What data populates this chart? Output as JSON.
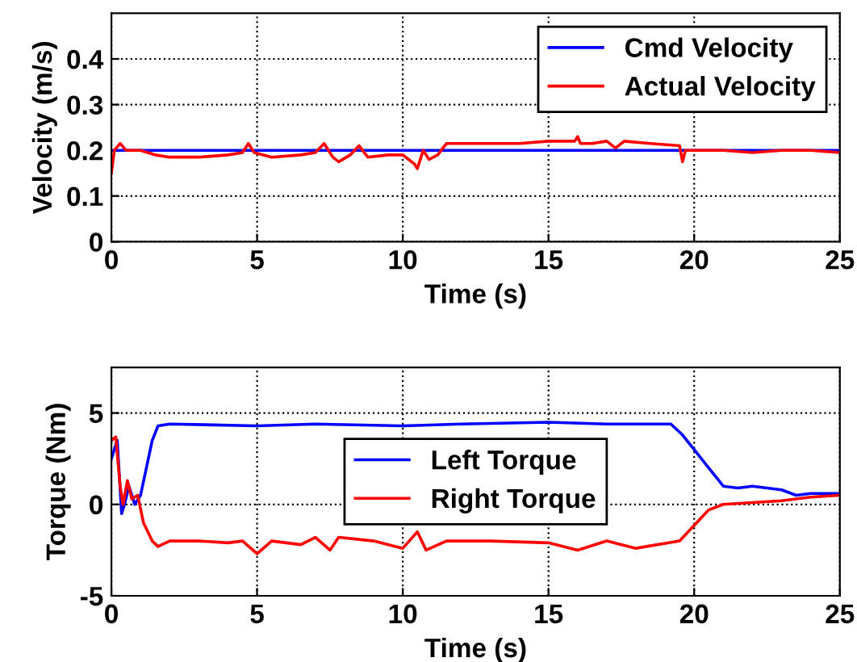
{
  "chart_data": [
    {
      "type": "line",
      "xlabel": "Time (s)",
      "ylabel": "Velocity (m/s)",
      "xlim": [
        0,
        25
      ],
      "xticks": [
        0,
        5,
        10,
        15,
        20,
        25
      ],
      "ylim": [
        0,
        0.5
      ],
      "yticks": [
        0,
        0.1,
        0.2,
        0.3,
        0.4
      ],
      "grid": true,
      "legend": "top right",
      "line_style": "solid",
      "series": [
        {
          "name": "Cmd Velocity",
          "color": "#0000ff",
          "x": [
            0,
            25
          ],
          "values": [
            0.2,
            0.2
          ]
        },
        {
          "name": "Actual Velocity",
          "color": "#ff0000",
          "x": [
            0,
            0.1,
            0.3,
            0.5,
            1,
            1.5,
            2,
            3,
            4,
            4.5,
            4.7,
            4.9,
            5.5,
            6.5,
            7,
            7.3,
            7.6,
            7.8,
            8.2,
            8.5,
            8.8,
            9.5,
            10,
            10.4,
            10.5,
            10.7,
            10.9,
            11.2,
            11.5,
            12,
            13,
            14,
            15,
            15.9,
            16,
            16.1,
            16.5,
            17,
            17.3,
            17.6,
            18.5,
            19.5,
            19.6,
            19.7,
            20,
            21,
            22,
            23,
            24,
            25
          ],
          "values": [
            0.15,
            0.2,
            0.215,
            0.2,
            0.2,
            0.19,
            0.185,
            0.185,
            0.19,
            0.195,
            0.215,
            0.195,
            0.185,
            0.19,
            0.195,
            0.215,
            0.185,
            0.175,
            0.19,
            0.21,
            0.185,
            0.19,
            0.19,
            0.17,
            0.16,
            0.2,
            0.18,
            0.19,
            0.215,
            0.215,
            0.215,
            0.215,
            0.22,
            0.22,
            0.23,
            0.215,
            0.215,
            0.22,
            0.205,
            0.22,
            0.215,
            0.21,
            0.175,
            0.2,
            0.2,
            0.2,
            0.195,
            0.2,
            0.2,
            0.195
          ]
        }
      ]
    },
    {
      "type": "line",
      "xlabel": "Time (s)",
      "ylabel": "Torque (Nm)",
      "xlim": [
        0,
        25
      ],
      "xticks": [
        0,
        5,
        10,
        15,
        20,
        25
      ],
      "ylim": [
        -5,
        7.5
      ],
      "yticks": [
        -5,
        0,
        5
      ],
      "grid": true,
      "legend": "center",
      "line_style": "solid",
      "series": [
        {
          "name": "Left Torque",
          "color": "#0000ff",
          "x": [
            0,
            0.2,
            0.35,
            0.45,
            0.6,
            0.8,
            1.0,
            1.2,
            1.4,
            1.6,
            2,
            5,
            7,
            10,
            12,
            15,
            17,
            19.2,
            19.6,
            20,
            20.5,
            21,
            21.5,
            22,
            23,
            23.5,
            24,
            25
          ],
          "values": [
            2.5,
            3.5,
            -0.5,
            0,
            1.0,
            0,
            0.5,
            2.0,
            3.5,
            4.3,
            4.4,
            4.3,
            4.4,
            4.3,
            4.4,
            4.5,
            4.4,
            4.4,
            3.8,
            3.0,
            2.0,
            1.0,
            0.9,
            1.0,
            0.8,
            0.5,
            0.6,
            0.6
          ]
        },
        {
          "name": "Right Torque",
          "color": "#ff0000",
          "x": [
            0,
            0.15,
            0.3,
            0.4,
            0.55,
            0.7,
            0.9,
            1.1,
            1.4,
            1.6,
            2,
            3,
            4,
            4.5,
            5,
            5.5,
            6.5,
            7,
            7.5,
            7.8,
            9,
            10,
            10.5,
            10.8,
            11.5,
            13,
            15,
            16,
            17,
            18,
            19.5,
            20.5,
            21,
            22,
            23,
            24,
            25
          ],
          "values": [
            3.5,
            3.7,
            1,
            0,
            1.3,
            0.3,
            0.5,
            -1.0,
            -2.0,
            -2.3,
            -2.0,
            -2.0,
            -2.1,
            -2.0,
            -2.7,
            -2.0,
            -2.2,
            -1.8,
            -2.5,
            -1.8,
            -2.0,
            -2.4,
            -1.5,
            -2.5,
            -2.0,
            -2.0,
            -2.1,
            -2.5,
            -2.0,
            -2.4,
            -2.0,
            -0.3,
            0,
            0.1,
            0.2,
            0.4,
            0.5
          ]
        }
      ]
    }
  ]
}
